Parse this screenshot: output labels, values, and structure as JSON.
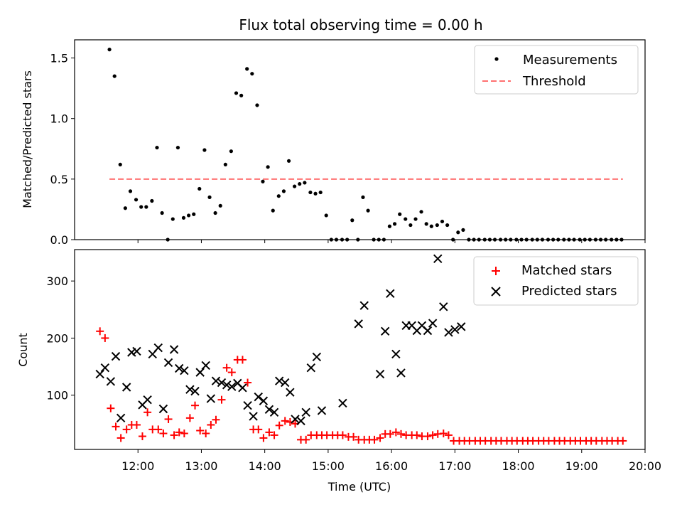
{
  "chart_data": [
    {
      "type": "scatter",
      "title": "Flux total observing time = 0.00 h",
      "xlabel": "",
      "ylabel": "Matched/Predicted stars",
      "xlim": [
        11.0,
        20.0
      ],
      "ylim": [
        0.0,
        1.65
      ],
      "xticks": [
        12,
        13,
        14,
        15,
        16,
        17,
        18,
        19,
        20
      ],
      "yticks": [
        0.0,
        0.5,
        1.0,
        1.5
      ],
      "ytick_labels": [
        "0.0",
        "0.5",
        "1.0",
        "1.5"
      ],
      "legend": {
        "position": "top-right",
        "entries": [
          "Measurements",
          "Threshold"
        ]
      },
      "threshold": {
        "name": "Threshold",
        "value": 0.5,
        "x_start": 11.55,
        "x_end": 19.65,
        "color": "#ff7070"
      },
      "series": [
        {
          "name": "Measurements",
          "color": "#000000",
          "marker": "dot",
          "x": [
            11.55,
            11.63,
            11.72,
            11.8,
            11.88,
            11.97,
            12.05,
            12.13,
            12.22,
            12.3,
            12.38,
            12.47,
            12.55,
            12.63,
            12.72,
            12.8,
            12.88,
            12.97,
            13.05,
            13.13,
            13.22,
            13.3,
            13.38,
            13.47,
            13.55,
            13.63,
            13.72,
            13.8,
            13.88,
            13.97,
            14.05,
            14.13,
            14.22,
            14.3,
            14.38,
            14.47,
            14.55,
            14.63,
            14.72,
            14.8,
            14.88,
            14.97,
            15.05,
            15.13,
            15.22,
            15.3,
            15.38,
            15.47,
            15.55,
            15.63,
            15.72,
            15.8,
            15.88,
            15.97,
            16.05,
            16.13,
            16.22,
            16.3,
            16.38,
            16.47,
            16.55,
            16.63,
            16.72,
            16.8,
            16.88,
            16.97,
            17.05,
            17.13,
            17.22,
            17.3,
            17.38,
            17.47,
            17.55,
            17.63,
            17.72,
            17.8,
            17.88,
            17.97,
            18.05,
            18.13,
            18.22,
            18.3,
            18.38,
            18.47,
            18.55,
            18.63,
            18.72,
            18.8,
            18.88,
            18.97,
            19.05,
            19.13,
            19.22,
            19.3,
            19.38,
            19.47,
            19.55,
            19.63
          ],
          "y": [
            1.57,
            1.35,
            0.62,
            0.26,
            0.4,
            0.33,
            0.27,
            0.27,
            0.32,
            0.76,
            0.22,
            0.0,
            0.17,
            0.76,
            0.18,
            0.2,
            0.21,
            0.42,
            0.74,
            0.35,
            0.22,
            0.28,
            0.62,
            0.73,
            1.21,
            1.19,
            1.41,
            1.37,
            1.11,
            0.48,
            0.6,
            0.24,
            0.36,
            0.4,
            0.65,
            0.44,
            0.46,
            0.47,
            0.39,
            0.38,
            0.39,
            0.2,
            0.0,
            0.0,
            0.0,
            0.0,
            0.16,
            0.0,
            0.35,
            0.24,
            0.0,
            0.0,
            0.0,
            0.11,
            0.13,
            0.21,
            0.17,
            0.12,
            0.17,
            0.23,
            0.13,
            0.11,
            0.12,
            0.15,
            0.12,
            0.0,
            0.06,
            0.08,
            0.0,
            0.0,
            0.0,
            0.0,
            0.0,
            0.0,
            0.0,
            0.0,
            0.0,
            0.0,
            0.0,
            0.0,
            0.0,
            0.0,
            0.0,
            0.0,
            0.0,
            0.0,
            0.0,
            0.0,
            0.0,
            0.0,
            0.0,
            0.0,
            0.0,
            0.0,
            0.0,
            0.0,
            0.0,
            0.0
          ]
        }
      ]
    },
    {
      "type": "scatter",
      "title": "",
      "xlabel": "Time (UTC)",
      "ylabel": "Count",
      "xlim": [
        11.0,
        20.0
      ],
      "ylim": [
        5,
        355
      ],
      "xticks": [
        12,
        13,
        14,
        15,
        16,
        17,
        18,
        19,
        20
      ],
      "xtick_labels": [
        "12:00",
        "13:00",
        "14:00",
        "15:00",
        "16:00",
        "17:00",
        "18:00",
        "19:00",
        "20:00"
      ],
      "yticks": [
        100,
        200,
        300
      ],
      "ytick_labels": [
        "100",
        "200",
        "300"
      ],
      "legend": {
        "position": "top-right",
        "entries": [
          "Matched stars",
          "Predicted stars"
        ]
      },
      "series": [
        {
          "name": "Matched stars",
          "color": "#ff0000",
          "marker": "plus",
          "x": [
            11.4,
            11.48,
            11.57,
            11.65,
            11.73,
            11.82,
            11.9,
            11.98,
            12.07,
            12.15,
            12.23,
            12.32,
            12.4,
            12.48,
            12.57,
            12.65,
            12.73,
            12.82,
            12.9,
            12.98,
            13.07,
            13.15,
            13.23,
            13.32,
            13.4,
            13.48,
            13.57,
            13.65,
            13.73,
            13.82,
            13.9,
            13.98,
            14.07,
            14.15,
            14.23,
            14.32,
            14.4,
            14.48,
            14.57,
            14.65,
            14.73,
            14.82,
            14.9,
            14.98,
            15.07,
            15.15,
            15.23,
            15.32,
            15.4,
            15.48,
            15.57,
            15.65,
            15.73,
            15.82,
            15.9,
            15.98,
            16.07,
            16.15,
            16.23,
            16.32,
            16.4,
            16.48,
            16.57,
            16.65,
            16.73,
            16.82,
            16.9,
            16.98,
            17.07,
            17.15,
            17.23,
            17.32,
            17.4,
            17.48,
            17.57,
            17.65,
            17.73,
            17.82,
            17.9,
            17.98,
            18.07,
            18.15,
            18.23,
            18.32,
            18.4,
            18.48,
            18.57,
            18.65,
            18.73,
            18.82,
            18.9,
            18.98,
            19.07,
            19.15,
            19.23,
            19.32,
            19.4,
            19.48,
            19.57,
            19.65
          ],
          "y": [
            212,
            200,
            77,
            45,
            25,
            40,
            48,
            48,
            28,
            70,
            40,
            40,
            33,
            58,
            30,
            35,
            33,
            60,
            82,
            38,
            33,
            48,
            57,
            92,
            148,
            140,
            162,
            162,
            122,
            40,
            40,
            25,
            35,
            30,
            47,
            55,
            53,
            50,
            22,
            22,
            30,
            30,
            30,
            30,
            30,
            30,
            30,
            27,
            27,
            22,
            22,
            22,
            22,
            25,
            32,
            32,
            35,
            32,
            30,
            30,
            30,
            28,
            28,
            30,
            32,
            33,
            30,
            20,
            20,
            20,
            20,
            20,
            20,
            20,
            20,
            20,
            20,
            20,
            20,
            20,
            20,
            20,
            20,
            20,
            20,
            20,
            20,
            20,
            20,
            20,
            20,
            20,
            20,
            20,
            20,
            20,
            20,
            20,
            20,
            20
          ]
        },
        {
          "name": "Predicted stars",
          "color": "#000000",
          "marker": "x",
          "x": [
            11.4,
            11.48,
            11.57,
            11.65,
            11.73,
            11.82,
            11.9,
            11.98,
            12.07,
            12.15,
            12.23,
            12.32,
            12.4,
            12.48,
            12.57,
            12.65,
            12.73,
            12.82,
            12.9,
            12.98,
            13.07,
            13.15,
            13.23,
            13.32,
            13.4,
            13.48,
            13.57,
            13.65,
            13.73,
            13.82,
            13.9,
            13.98,
            14.07,
            14.15,
            14.23,
            14.32,
            14.4,
            14.48,
            14.57,
            14.65,
            14.73,
            14.82,
            14.9,
            15.23,
            15.48,
            15.57,
            15.82,
            15.9,
            15.98,
            16.07,
            16.15,
            16.23,
            16.32,
            16.4,
            16.48,
            16.57,
            16.65,
            16.73,
            16.82,
            16.9,
            17.0,
            17.1
          ],
          "y": [
            137,
            148,
            124,
            168,
            60,
            114,
            175,
            177,
            83,
            92,
            172,
            183,
            76,
            157,
            180,
            147,
            143,
            110,
            107,
            140,
            152,
            94,
            125,
            122,
            118,
            115,
            121,
            113,
            82,
            63,
            97,
            90,
            75,
            70,
            125,
            122,
            105,
            58,
            55,
            70,
            148,
            167,
            73,
            86,
            225,
            257,
            137,
            212,
            278,
            172,
            139,
            222,
            222,
            213,
            222,
            213,
            226,
            339,
            255,
            210,
            215,
            220
          ]
        }
      ]
    }
  ]
}
